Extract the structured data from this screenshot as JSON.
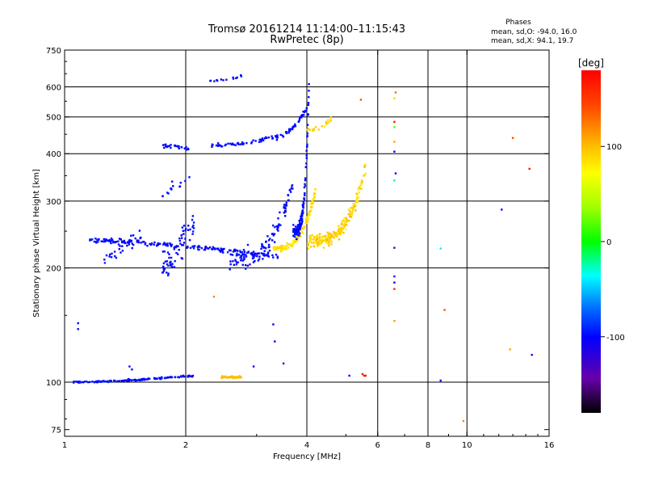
{
  "chart_data": {
    "type": "scatter",
    "title": "Tromsø 20161214 11:14:00–11:15:43",
    "subtitle": "RwPretec (8p)",
    "stats": {
      "heading": "Phases",
      "line_o": "mean, sd,O: -94.0, 16.0",
      "line_x": "mean, sd,X:  94.1, 19.7"
    },
    "xlabel": "Frequency [MHz]",
    "ylabel": "Stationary phase Virtual Height [km]",
    "x_scale": "log",
    "y_scale": "log",
    "xlim": [
      1,
      16
    ],
    "ylim": [
      72,
      750
    ],
    "x_ticks": [
      {
        "value": 1,
        "label": "1"
      },
      {
        "value": 2,
        "label": "2"
      },
      {
        "value": 4,
        "label": "4"
      },
      {
        "value": 6,
        "label": "6"
      },
      {
        "value": 8,
        "label": "8"
      },
      {
        "value": 10,
        "label": "10"
      },
      {
        "value": 16,
        "label": "16"
      }
    ],
    "y_ticks": [
      {
        "value": 75,
        "label": "75"
      },
      {
        "value": 100,
        "label": "100"
      },
      {
        "value": 200,
        "label": "200"
      },
      {
        "value": 300,
        "label": "300"
      },
      {
        "value": 400,
        "label": "400"
      },
      {
        "value": 500,
        "label": "500"
      },
      {
        "value": 600,
        "label": "600"
      },
      {
        "value": 750,
        "label": "750"
      }
    ],
    "x_gridlines": [
      2,
      4,
      6,
      8,
      10
    ],
    "y_gridlines": [
      100,
      200,
      300,
      400,
      500,
      600
    ],
    "colorbar": {
      "label": "[deg]",
      "range": [
        -180,
        180
      ],
      "ticks": [
        {
          "value": 100,
          "label": "100"
        },
        {
          "value": 0,
          "label": "0"
        },
        {
          "value": -100,
          "label": "-100"
        }
      ]
    },
    "traces": [
      {
        "f0": 1.05,
        "f1": 2.1,
        "h0": 100,
        "h1": 104,
        "curve": 0.5,
        "n": 140,
        "jitter": 0.008,
        "phase": -100,
        "psd": 14
      },
      {
        "f0": 2.45,
        "f1": 2.75,
        "h0": 103,
        "h1": 103,
        "curve": 0,
        "n": 45,
        "jitter": 0.008,
        "phase": 100,
        "psd": 10
      },
      {
        "f0": 1.15,
        "f1": 3.4,
        "h0": 236,
        "h1": 214,
        "curve": 0.6,
        "n": 190,
        "jitter": 0.02,
        "phase": -100,
        "psd": 14,
        "min_h": 205
      },
      {
        "f0": 3.3,
        "f1": 4.2,
        "h0": 225,
        "h1": 320,
        "curve": 2.2,
        "n": 130,
        "jitter": 0.03,
        "phase": 85,
        "psd": 18
      },
      {
        "f0": 4.0,
        "f1": 5.6,
        "h0": 235,
        "h1": 370,
        "curve": 2.4,
        "n": 220,
        "jitter": 0.06,
        "phase": 90,
        "psd": 22
      },
      {
        "f0": 2.55,
        "f1": 3.7,
        "h0": 212,
        "h1": 345,
        "curve": 2.5,
        "n": 120,
        "jitter": 0.08,
        "phase": -100,
        "psd": 14
      },
      {
        "f0": 3.7,
        "f1": 4.05,
        "h0": 250,
        "h1": 620,
        "curve": 3.0,
        "n": 130,
        "jitter": 0.06,
        "phase": -100,
        "psd": 12
      },
      {
        "f0": 1.75,
        "f1": 2.05,
        "h0": 420,
        "h1": 414,
        "curve": 0,
        "n": 28,
        "jitter": 0.015,
        "phase": -100,
        "psd": 10
      },
      {
        "f0": 2.3,
        "f1": 3.2,
        "h0": 420,
        "h1": 440,
        "curve": 1,
        "n": 45,
        "jitter": 0.015,
        "phase": -100,
        "psd": 12
      },
      {
        "f0": 3.2,
        "f1": 4.0,
        "h0": 440,
        "h1": 530,
        "curve": 1.5,
        "n": 50,
        "jitter": 0.02,
        "phase": -100,
        "psd": 12
      },
      {
        "f0": 4.0,
        "f1": 4.6,
        "h0": 460,
        "h1": 495,
        "curve": 1.2,
        "n": 22,
        "jitter": 0.02,
        "phase": 90,
        "psd": 15
      },
      {
        "f0": 2.3,
        "f1": 2.75,
        "h0": 622,
        "h1": 640,
        "curve": 1,
        "n": 14,
        "jitter": 0.01,
        "phase": -100,
        "psd": 10
      },
      {
        "f0": 1.75,
        "f1": 2.1,
        "h0": 200,
        "h1": 260,
        "curve": 0,
        "n": 60,
        "jitter": 0.12,
        "phase": -100,
        "psd": 12
      },
      {
        "f0": 1.25,
        "f1": 1.55,
        "h0": 210,
        "h1": 245,
        "curve": 0,
        "n": 30,
        "jitter": 0.06,
        "phase": -100,
        "psd": 10
      },
      {
        "f0": 1.7,
        "f1": 2.05,
        "h0": 315,
        "h1": 340,
        "curve": 0,
        "n": 14,
        "jitter": 0.05,
        "phase": -100,
        "psd": 10
      }
    ],
    "points": [
      {
        "x": 1.08,
        "y": 143,
        "phase": -100
      },
      {
        "x": 1.08,
        "y": 138,
        "phase": -100
      },
      {
        "x": 1.45,
        "y": 110,
        "phase": -100
      },
      {
        "x": 1.47,
        "y": 108,
        "phase": -100
      },
      {
        "x": 2.35,
        "y": 168,
        "phase": 120
      },
      {
        "x": 2.95,
        "y": 110,
        "phase": -100
      },
      {
        "x": 3.3,
        "y": 142,
        "phase": -100
      },
      {
        "x": 3.33,
        "y": 128,
        "phase": -100
      },
      {
        "x": 3.5,
        "y": 112,
        "phase": -100
      },
      {
        "x": 5.1,
        "y": 104,
        "phase": -100
      },
      {
        "x": 5.5,
        "y": 105,
        "phase": 170
      },
      {
        "x": 5.55,
        "y": 104,
        "phase": 175
      },
      {
        "x": 5.6,
        "y": 104,
        "phase": 170
      },
      {
        "x": 5.45,
        "y": 555,
        "phase": 140
      },
      {
        "x": 6.6,
        "y": 485,
        "phase": 170
      },
      {
        "x": 6.6,
        "y": 470,
        "phase": 20
      },
      {
        "x": 6.6,
        "y": 430,
        "phase": 110
      },
      {
        "x": 6.6,
        "y": 405,
        "phase": -100
      },
      {
        "x": 6.65,
        "y": 355,
        "phase": -100
      },
      {
        "x": 6.6,
        "y": 340,
        "phase": -20
      },
      {
        "x": 6.65,
        "y": 580,
        "phase": 130
      },
      {
        "x": 6.6,
        "y": 560,
        "phase": 90
      },
      {
        "x": 6.6,
        "y": 226,
        "phase": -150
      },
      {
        "x": 6.6,
        "y": 190,
        "phase": -130
      },
      {
        "x": 6.6,
        "y": 183,
        "phase": -100
      },
      {
        "x": 6.6,
        "y": 176,
        "phase": 160
      },
      {
        "x": 6.6,
        "y": 145,
        "phase": 110
      },
      {
        "x": 8.6,
        "y": 225,
        "phase": -40
      },
      {
        "x": 8.8,
        "y": 155,
        "phase": 140
      },
      {
        "x": 8.6,
        "y": 101,
        "phase": -100
      },
      {
        "x": 9.8,
        "y": 79,
        "phase": 120
      },
      {
        "x": 12.2,
        "y": 285,
        "phase": -100
      },
      {
        "x": 12.8,
        "y": 122,
        "phase": 110
      },
      {
        "x": 13.0,
        "y": 440,
        "phase": 140
      },
      {
        "x": 14.3,
        "y": 365,
        "phase": 170
      },
      {
        "x": 14.5,
        "y": 118,
        "phase": -100
      }
    ]
  }
}
